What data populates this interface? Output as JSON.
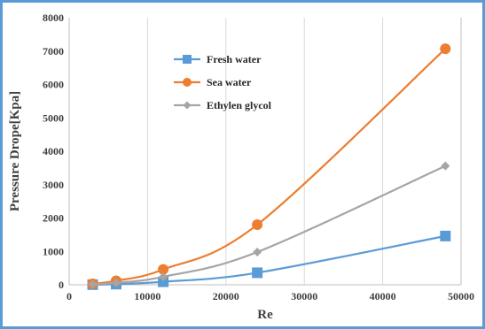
{
  "chart_data": {
    "type": "line",
    "title": "",
    "xlabel": "Re",
    "ylabel": "Pressure Drope[Kpa]",
    "xlim": [
      0,
      50000
    ],
    "ylim": [
      0,
      8000
    ],
    "x_ticks": [
      "0",
      "10000",
      "20000",
      "30000",
      "40000",
      "50000"
    ],
    "y_ticks": [
      "0",
      "1000",
      "2000",
      "3000",
      "4000",
      "5000",
      "6000",
      "7000",
      "8000"
    ],
    "grid": "vertical",
    "legend_position": "top-left",
    "x": [
      3000,
      6000,
      12000,
      24000,
      48000
    ],
    "series": [
      {
        "name": "Fresh water",
        "color": "#5b9bd5",
        "marker": "square",
        "values": [
          5,
          20,
          90,
          360,
          1460
        ]
      },
      {
        "name": "Sea water",
        "color": "#ed7d31",
        "marker": "circle",
        "values": [
          30,
          120,
          460,
          1800,
          7070
        ]
      },
      {
        "name": "Ethylen glycol",
        "color": "#a5a5a5",
        "marker": "diamond",
        "values": [
          15,
          60,
          240,
          980,
          3560
        ]
      }
    ]
  }
}
